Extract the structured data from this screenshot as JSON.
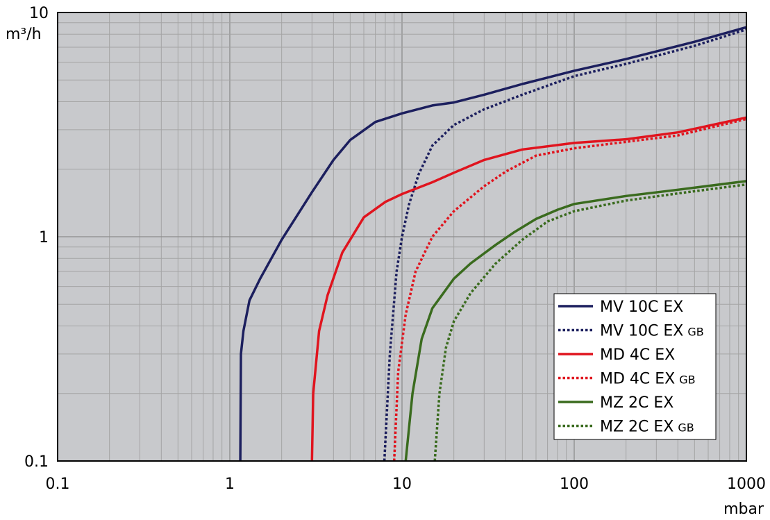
{
  "chart_data": {
    "type": "line",
    "xlabel": "mbar",
    "ylabel": "m³/h",
    "xscale": "log",
    "yscale": "log",
    "xlim": [
      0.1,
      1000
    ],
    "ylim": [
      0.1,
      10
    ],
    "x_ticks": [
      "0.1",
      "1",
      "10",
      "100",
      "1000"
    ],
    "y_ticks": [
      "0.1",
      "1",
      "10"
    ],
    "grid": true,
    "legend_position": "bottom-right",
    "series": [
      {
        "name": "MV 10C EX",
        "suffix": "",
        "color": "#1c1f5e",
        "style": "solid",
        "points": [
          [
            1.15,
            0.1
          ],
          [
            1.16,
            0.3
          ],
          [
            1.2,
            0.38
          ],
          [
            1.3,
            0.52
          ],
          [
            1.5,
            0.65
          ],
          [
            2,
            0.97
          ],
          [
            3,
            1.58
          ],
          [
            4,
            2.2
          ],
          [
            5,
            2.7
          ],
          [
            7,
            3.25
          ],
          [
            10,
            3.55
          ],
          [
            15,
            3.85
          ],
          [
            20,
            3.97
          ],
          [
            30,
            4.3
          ],
          [
            50,
            4.8
          ],
          [
            100,
            5.5
          ],
          [
            200,
            6.2
          ],
          [
            500,
            7.4
          ],
          [
            1000,
            8.6
          ]
        ]
      },
      {
        "name": "MV 10C EX",
        "suffix": "GB",
        "color": "#1c1f5e",
        "style": "dotted",
        "points": [
          [
            7.9,
            0.1
          ],
          [
            8.5,
            0.3
          ],
          [
            9.3,
            0.7
          ],
          [
            10,
            1.0
          ],
          [
            11,
            1.4
          ],
          [
            12.5,
            1.9
          ],
          [
            15,
            2.55
          ],
          [
            20,
            3.15
          ],
          [
            30,
            3.7
          ],
          [
            50,
            4.3
          ],
          [
            100,
            5.2
          ],
          [
            200,
            5.9
          ],
          [
            500,
            7.1
          ],
          [
            1000,
            8.4
          ]
        ]
      },
      {
        "name": "MD 4C EX",
        "suffix": "",
        "color": "#e0141e",
        "style": "solid",
        "points": [
          [
            3.0,
            0.1
          ],
          [
            3.05,
            0.2
          ],
          [
            3.3,
            0.38
          ],
          [
            3.7,
            0.55
          ],
          [
            4.5,
            0.85
          ],
          [
            6,
            1.22
          ],
          [
            8,
            1.43
          ],
          [
            10,
            1.55
          ],
          [
            15,
            1.75
          ],
          [
            20,
            1.93
          ],
          [
            30,
            2.2
          ],
          [
            50,
            2.45
          ],
          [
            100,
            2.62
          ],
          [
            200,
            2.72
          ],
          [
            400,
            2.92
          ],
          [
            1000,
            3.4
          ]
        ]
      },
      {
        "name": "MD 4C EX",
        "suffix": "GB",
        "color": "#e0141e",
        "style": "dotted",
        "points": [
          [
            9.0,
            0.1
          ],
          [
            9.5,
            0.25
          ],
          [
            10.5,
            0.45
          ],
          [
            12,
            0.7
          ],
          [
            15,
            1.0
          ],
          [
            20,
            1.3
          ],
          [
            30,
            1.68
          ],
          [
            40,
            1.95
          ],
          [
            60,
            2.3
          ],
          [
            100,
            2.48
          ],
          [
            200,
            2.65
          ],
          [
            400,
            2.83
          ],
          [
            1000,
            3.35
          ]
        ]
      },
      {
        "name": "MZ 2C EX",
        "suffix": "",
        "color": "#3a6b1e",
        "style": "solid",
        "points": [
          [
            10.5,
            0.1
          ],
          [
            11.5,
            0.2
          ],
          [
            13,
            0.35
          ],
          [
            15,
            0.48
          ],
          [
            20,
            0.65
          ],
          [
            25,
            0.76
          ],
          [
            35,
            0.92
          ],
          [
            45,
            1.05
          ],
          [
            60,
            1.2
          ],
          [
            80,
            1.32
          ],
          [
            100,
            1.4
          ],
          [
            200,
            1.52
          ],
          [
            400,
            1.62
          ],
          [
            1000,
            1.77
          ]
        ]
      },
      {
        "name": "MZ 2C EX",
        "suffix": "GB",
        "color": "#3a6b1e",
        "style": "dotted",
        "points": [
          [
            15.5,
            0.1
          ],
          [
            16.5,
            0.2
          ],
          [
            18,
            0.32
          ],
          [
            20,
            0.42
          ],
          [
            25,
            0.56
          ],
          [
            35,
            0.76
          ],
          [
            50,
            0.97
          ],
          [
            70,
            1.17
          ],
          [
            100,
            1.3
          ],
          [
            200,
            1.45
          ],
          [
            400,
            1.56
          ],
          [
            1000,
            1.71
          ]
        ]
      }
    ]
  }
}
